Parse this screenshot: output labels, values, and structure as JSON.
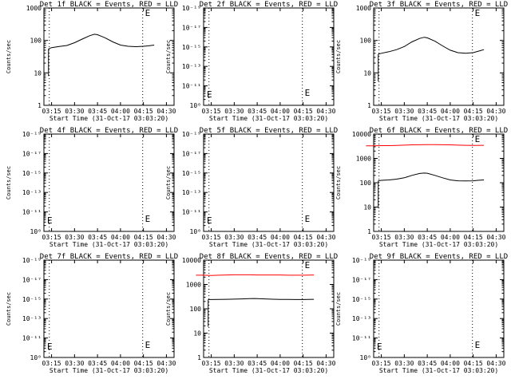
{
  "chart_data": [
    {
      "type": "line",
      "title": "Det 1f BLACK = Events, RED = LLD",
      "xlabel": "Start Time (31-Oct-17 03:03:20)",
      "ylabel": "Counts/sec",
      "yscale": "log",
      "ylim": [
        1,
        1000
      ],
      "yticks": [
        "1",
        "10",
        "100",
        "1000"
      ],
      "xticks": [
        "03:15",
        "03:30",
        "03:45",
        "04:00",
        "04:15",
        "04:30"
      ],
      "xlim_min": [
        10,
        95
      ],
      "dotted_lines_min": [
        13.5,
        74.5
      ],
      "markers": [
        "E"
      ],
      "series": [
        {
          "color": "#000000",
          "start": 13,
          "end": 82,
          "x": [
            13,
            15,
            20,
            25,
            30,
            35,
            40,
            43,
            45,
            50,
            55,
            60,
            65,
            70,
            75,
            78,
            82
          ],
          "y": [
            55,
            60,
            65,
            70,
            85,
            110,
            140,
            155,
            150,
            120,
            90,
            72,
            66,
            64,
            66,
            68,
            72
          ]
        }
      ]
    },
    {
      "type": "line",
      "title": "Det 2f BLACK = Events, RED = LLD",
      "xlabel": "Start Time (31-Oct-17 03:03:20)",
      "ylabel": "Counts/sec",
      "yscale": "log",
      "ylim": [
        1e-10,
        1e-09
      ],
      "yticks": [
        "10⁰",
        "10⁻¹¹",
        "10⁻¹³",
        "10⁻¹⁵",
        "10⁻¹⁷",
        "10⁻¹⁹"
      ],
      "xticks": [
        "03:15",
        "03:30",
        "03:45",
        "04:00",
        "04:15",
        "04:30"
      ],
      "xlim_min": [
        10,
        95
      ],
      "dotted_lines_min": [
        13.5,
        74.5
      ],
      "markers": [
        "E",
        "E"
      ],
      "series": []
    },
    {
      "type": "line",
      "title": "Det 3f BLACK = Events, RED = LLD",
      "xlabel": "Start Time (31-Oct-17 03:03:20)",
      "ylabel": "Counts/sec",
      "yscale": "log",
      "ylim": [
        1,
        1000
      ],
      "yticks": [
        "1",
        "10",
        "100",
        "1000"
      ],
      "xticks": [
        "03:15",
        "03:30",
        "03:45",
        "04:00",
        "04:15",
        "04:30"
      ],
      "xlim_min": [
        10,
        95
      ],
      "dotted_lines_min": [
        13.5,
        74.5
      ],
      "markers": [
        "E"
      ],
      "series": [
        {
          "color": "#000000",
          "start": 13,
          "end": 82,
          "x": [
            13,
            15,
            20,
            25,
            30,
            35,
            40,
            43,
            45,
            50,
            55,
            60,
            65,
            70,
            75,
            78,
            82
          ],
          "y": [
            38,
            40,
            45,
            52,
            65,
            90,
            115,
            125,
            120,
            95,
            68,
            50,
            42,
            40,
            42,
            46,
            52
          ]
        }
      ]
    },
    {
      "type": "line",
      "title": "Det 4f BLACK = Events, RED = LLD",
      "xlabel": "Start Time (31-Oct-17 03:03:20)",
      "ylabel": "Counts/sec",
      "yscale": "log",
      "ylim": [
        1e-10,
        1e-09
      ],
      "yticks": [
        "10⁰",
        "10⁻¹¹",
        "10⁻¹³",
        "10⁻¹⁵",
        "10⁻¹⁷",
        "10⁻¹⁹"
      ],
      "xticks": [
        "03:15",
        "03:30",
        "03:45",
        "04:00",
        "04:15",
        "04:30"
      ],
      "xlim_min": [
        10,
        95
      ],
      "dotted_lines_min": [
        13.5,
        74.5
      ],
      "markers": [
        "E",
        "E"
      ],
      "series": []
    },
    {
      "type": "line",
      "title": "Det 5f BLACK = Events, RED = LLD",
      "xlabel": "Start Time (31-Oct-17 03:03:20)",
      "ylabel": "Counts/sec",
      "yscale": "log",
      "ylim": [
        1e-10,
        1e-09
      ],
      "yticks": [
        "10⁰",
        "10⁻¹¹",
        "10⁻¹³",
        "10⁻¹⁵",
        "10⁻¹⁷",
        "10⁻¹⁹"
      ],
      "xticks": [
        "03:15",
        "03:30",
        "03:45",
        "04:00",
        "04:15",
        "04:30"
      ],
      "xlim_min": [
        10,
        95
      ],
      "dotted_lines_min": [
        13.5,
        74.5
      ],
      "markers": [
        "E",
        "E"
      ],
      "series": []
    },
    {
      "type": "line",
      "title": "Det 6f BLACK = Events, RED = LLD",
      "xlabel": "Start Time (31-Oct-17 03:03:20)",
      "ylabel": "Counts/sec",
      "yscale": "log",
      "ylim": [
        1,
        10000
      ],
      "yticks": [
        "1",
        "10",
        "100",
        "1000",
        "10000"
      ],
      "xticks": [
        "03:15",
        "03:30",
        "03:45",
        "04:00",
        "04:15",
        "04:30"
      ],
      "xlim_min": [
        10,
        95
      ],
      "dotted_lines_min": [
        13.5,
        74.5
      ],
      "markers": [
        "E"
      ],
      "series": [
        {
          "color": "#000000",
          "start": 13,
          "end": 82,
          "x": [
            13,
            15,
            20,
            25,
            30,
            35,
            40,
            43,
            45,
            50,
            55,
            60,
            65,
            70,
            75,
            78,
            82
          ],
          "y": [
            120,
            125,
            130,
            140,
            160,
            200,
            240,
            250,
            245,
            200,
            160,
            130,
            120,
            118,
            120,
            125,
            130
          ]
        },
        {
          "color": "#ff0000",
          "start": 5,
          "end": 82,
          "x": [
            5,
            10,
            15,
            20,
            25,
            30,
            35,
            40,
            45,
            50,
            55,
            60,
            65,
            70,
            75,
            82
          ],
          "y": [
            3300,
            3300,
            3350,
            3350,
            3400,
            3500,
            3600,
            3650,
            3700,
            3700,
            3650,
            3600,
            3500,
            3450,
            3400,
            3450
          ]
        }
      ]
    },
    {
      "type": "line",
      "title": "Det 7f BLACK = Events, RED = LLD",
      "xlabel": "Start Time (31-Oct-17 03:03:20)",
      "ylabel": "Counts/sec",
      "yscale": "log",
      "ylim": [
        1e-10,
        1e-09
      ],
      "yticks": [
        "10⁰",
        "10⁻¹¹",
        "10⁻¹³",
        "10⁻¹⁵",
        "10⁻¹⁷",
        "10⁻¹⁹"
      ],
      "xticks": [
        "03:15",
        "03:30",
        "03:45",
        "04:00",
        "04:15",
        "04:30"
      ],
      "xlim_min": [
        10,
        95
      ],
      "dotted_lines_min": [
        13.5,
        74.5
      ],
      "markers": [
        "E",
        "E"
      ],
      "series": []
    },
    {
      "type": "line",
      "title": "Det 8f BLACK = Events, RED = LLD",
      "xlabel": "Start Time (31-Oct-17 03:03:20)",
      "ylabel": "Counts/sec",
      "yscale": "log",
      "ylim": [
        1,
        10000
      ],
      "yticks": [
        "1",
        "10",
        "100",
        "1000",
        "10000"
      ],
      "xticks": [
        "03:15",
        "03:30",
        "03:45",
        "04:00",
        "04:15",
        "04:30"
      ],
      "xlim_min": [
        10,
        95
      ],
      "dotted_lines_min": [
        13.5,
        74.5
      ],
      "markers": [
        "E"
      ],
      "series": [
        {
          "color": "#000000",
          "start": 13,
          "end": 82,
          "x": [
            13,
            15,
            20,
            25,
            30,
            35,
            40,
            43,
            45,
            50,
            55,
            60,
            65,
            70,
            75,
            78,
            82
          ],
          "y": [
            240,
            240,
            242,
            245,
            250,
            255,
            262,
            265,
            262,
            255,
            248,
            244,
            242,
            240,
            240,
            242,
            245
          ]
        },
        {
          "color": "#ff0000",
          "start": 5,
          "end": 82,
          "x": [
            5,
            10,
            15,
            20,
            25,
            30,
            35,
            40,
            45,
            50,
            55,
            60,
            65,
            70,
            75,
            82
          ],
          "y": [
            2400,
            2400,
            2350,
            2400,
            2450,
            2500,
            2500,
            2500,
            2450,
            2450,
            2450,
            2450,
            2400,
            2400,
            2400,
            2450
          ]
        }
      ]
    },
    {
      "type": "line",
      "title": "Det 9f BLACK = Events, RED = LLD",
      "xlabel": "Start Time (31-Oct-17 03:03:20)",
      "ylabel": "Counts/sec",
      "yscale": "log",
      "ylim": [
        1e-10,
        1e-09
      ],
      "yticks": [
        "10⁰",
        "10⁻¹¹",
        "10⁻¹³",
        "10⁻¹⁵",
        "10⁻¹⁷",
        "10⁻¹⁹"
      ],
      "xticks": [
        "03:15",
        "03:30",
        "03:45",
        "04:00",
        "04:15",
        "04:30"
      ],
      "xlim_min": [
        10,
        95
      ],
      "dotted_lines_min": [
        13.5,
        74.5
      ],
      "markers": [
        "E",
        "E"
      ],
      "series": []
    }
  ]
}
